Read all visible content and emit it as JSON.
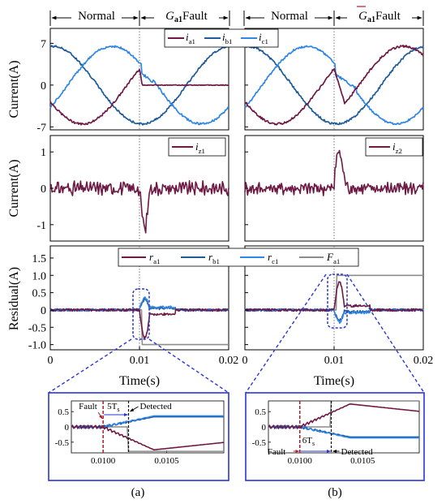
{
  "colors": {
    "ia": "#6e1a45",
    "ib": "#1f5a99",
    "ic": "#2f86e6",
    "F": "#8c8c8c",
    "normal": "#1f3c99",
    "fault": "#b01c2e",
    "zoom": "#2a35d6"
  },
  "header": {
    "a": {
      "normal": "Normal",
      "fault_g": "G",
      "fault_sub": "a1",
      "fault_word": "Fault"
    },
    "b": {
      "normal": "Normal",
      "fault_g": "G",
      "fault_sub": "a1",
      "fault_word": "Fault"
    }
  },
  "axes": {
    "current_ylabel": "Current(A)",
    "residual_ylabel": "Residual(A)",
    "time_xlabel": "Time(s)",
    "x_ticks": [
      "0",
      "0.01",
      "0.02"
    ],
    "row1_ticks": [
      "7",
      "0",
      "-7"
    ],
    "row2_ticks": [
      "1",
      "0",
      "-1"
    ],
    "row3_ticks": [
      "1.5",
      "1.0",
      "0.5",
      "0",
      "-0.5",
      "-1.0"
    ]
  },
  "legends": {
    "row1": [
      {
        "base": "i",
        "sub": "a1"
      },
      {
        "base": "i",
        "sub": "b1"
      },
      {
        "base": "i",
        "sub": "c1"
      }
    ],
    "row2a": {
      "base": "i",
      "sub": "z1"
    },
    "row2b": {
      "base": "i",
      "sub": "z2"
    },
    "row3": [
      {
        "base": "r",
        "sub": "a1"
      },
      {
        "base": "r",
        "sub": "b1"
      },
      {
        "base": "r",
        "sub": "c1"
      },
      {
        "base": "F",
        "sub": "a1"
      }
    ]
  },
  "zoom": {
    "a": {
      "fault": "Fault",
      "delay": "5T",
      "delay_sub": "s",
      "detected": "Detected",
      "y_ticks": [
        "0.5",
        "0",
        "-0.5"
      ],
      "x_ticks": [
        "0.0100",
        "0.0105"
      ]
    },
    "b": {
      "fault": "Fault",
      "delay": "6T",
      "delay_sub": "s",
      "detected": "Detected",
      "y_ticks": [
        "0.5",
        "0",
        "-0.5"
      ],
      "x_ticks": [
        "0.0100",
        "0.0105"
      ]
    }
  },
  "captions": {
    "a": "(a)",
    "b": "(b)"
  },
  "chart_data": [
    {
      "type": "line",
      "panel": "a-current",
      "xlim": [
        0,
        0.02
      ],
      "ylim": [
        -7.5,
        9.5
      ],
      "fault_time": 0.01,
      "series": [
        {
          "name": "ia1",
          "amplitude": 6.5,
          "phase_deg": 205,
          "after_fault": 0
        },
        {
          "name": "ib1",
          "amplitude": 6.5,
          "phase_deg": 85,
          "after_fault": "sinusoid"
        },
        {
          "name": "ic1",
          "amplitude": 6.5,
          "phase_deg": 325,
          "after_fault": "sinusoid"
        }
      ]
    },
    {
      "type": "line",
      "panel": "a-zero-sequence",
      "xlim": [
        0,
        0.02
      ],
      "ylim": [
        -1.45,
        1.45
      ],
      "series": [
        {
          "name": "iz1",
          "baseline": 0,
          "peak": -1.25,
          "peak_time": 0.0105
        }
      ]
    },
    {
      "type": "line",
      "panel": "a-residual",
      "xlim": [
        0,
        0.02
      ],
      "ylim": [
        -1.15,
        1.85
      ],
      "series": [
        {
          "name": "ra1",
          "peak": -0.8,
          "peak_time": 0.0102
        },
        {
          "name": "rb1",
          "peak": 0.3,
          "peak_time": 0.0102
        },
        {
          "name": "rc1",
          "peak": 0.35,
          "peak_time": 0.0102
        },
        {
          "name": "Fa1",
          "before": 0,
          "after": -1,
          "step_time": 0.01025
        }
      ]
    },
    {
      "type": "line",
      "panel": "b-current",
      "xlim": [
        0,
        0.02
      ],
      "ylim": [
        -7.5,
        9.5
      ],
      "fault_time": 0.01,
      "series": [
        {
          "name": "ia1",
          "amplitude": 6.5,
          "phase_deg": 205,
          "after_fault": "shifted"
        },
        {
          "name": "ib1",
          "amplitude": 6.5,
          "phase_deg": 85,
          "after_fault": "sinusoid"
        },
        {
          "name": "ic1",
          "amplitude": 6.5,
          "phase_deg": 325,
          "after_fault": "reduced"
        }
      ]
    },
    {
      "type": "line",
      "panel": "b-zero-sequence",
      "xlim": [
        0,
        0.02
      ],
      "ylim": [
        -1.45,
        1.45
      ],
      "series": [
        {
          "name": "iz2",
          "baseline": 0,
          "peak": 1.0,
          "peak_time": 0.0105
        }
      ]
    },
    {
      "type": "line",
      "panel": "b-residual",
      "xlim": [
        0,
        0.02
      ],
      "ylim": [
        -1.15,
        1.85
      ],
      "series": [
        {
          "name": "ra1",
          "peak": 0.7,
          "peak_time": 0.0102
        },
        {
          "name": "rb1",
          "peak": -0.35,
          "peak_time": 0.0102
        },
        {
          "name": "rc1",
          "peak": -0.3,
          "peak_time": 0.0102
        },
        {
          "name": "Fa1",
          "before": 0,
          "after": 1,
          "step_time": 0.01025
        }
      ]
    }
  ]
}
